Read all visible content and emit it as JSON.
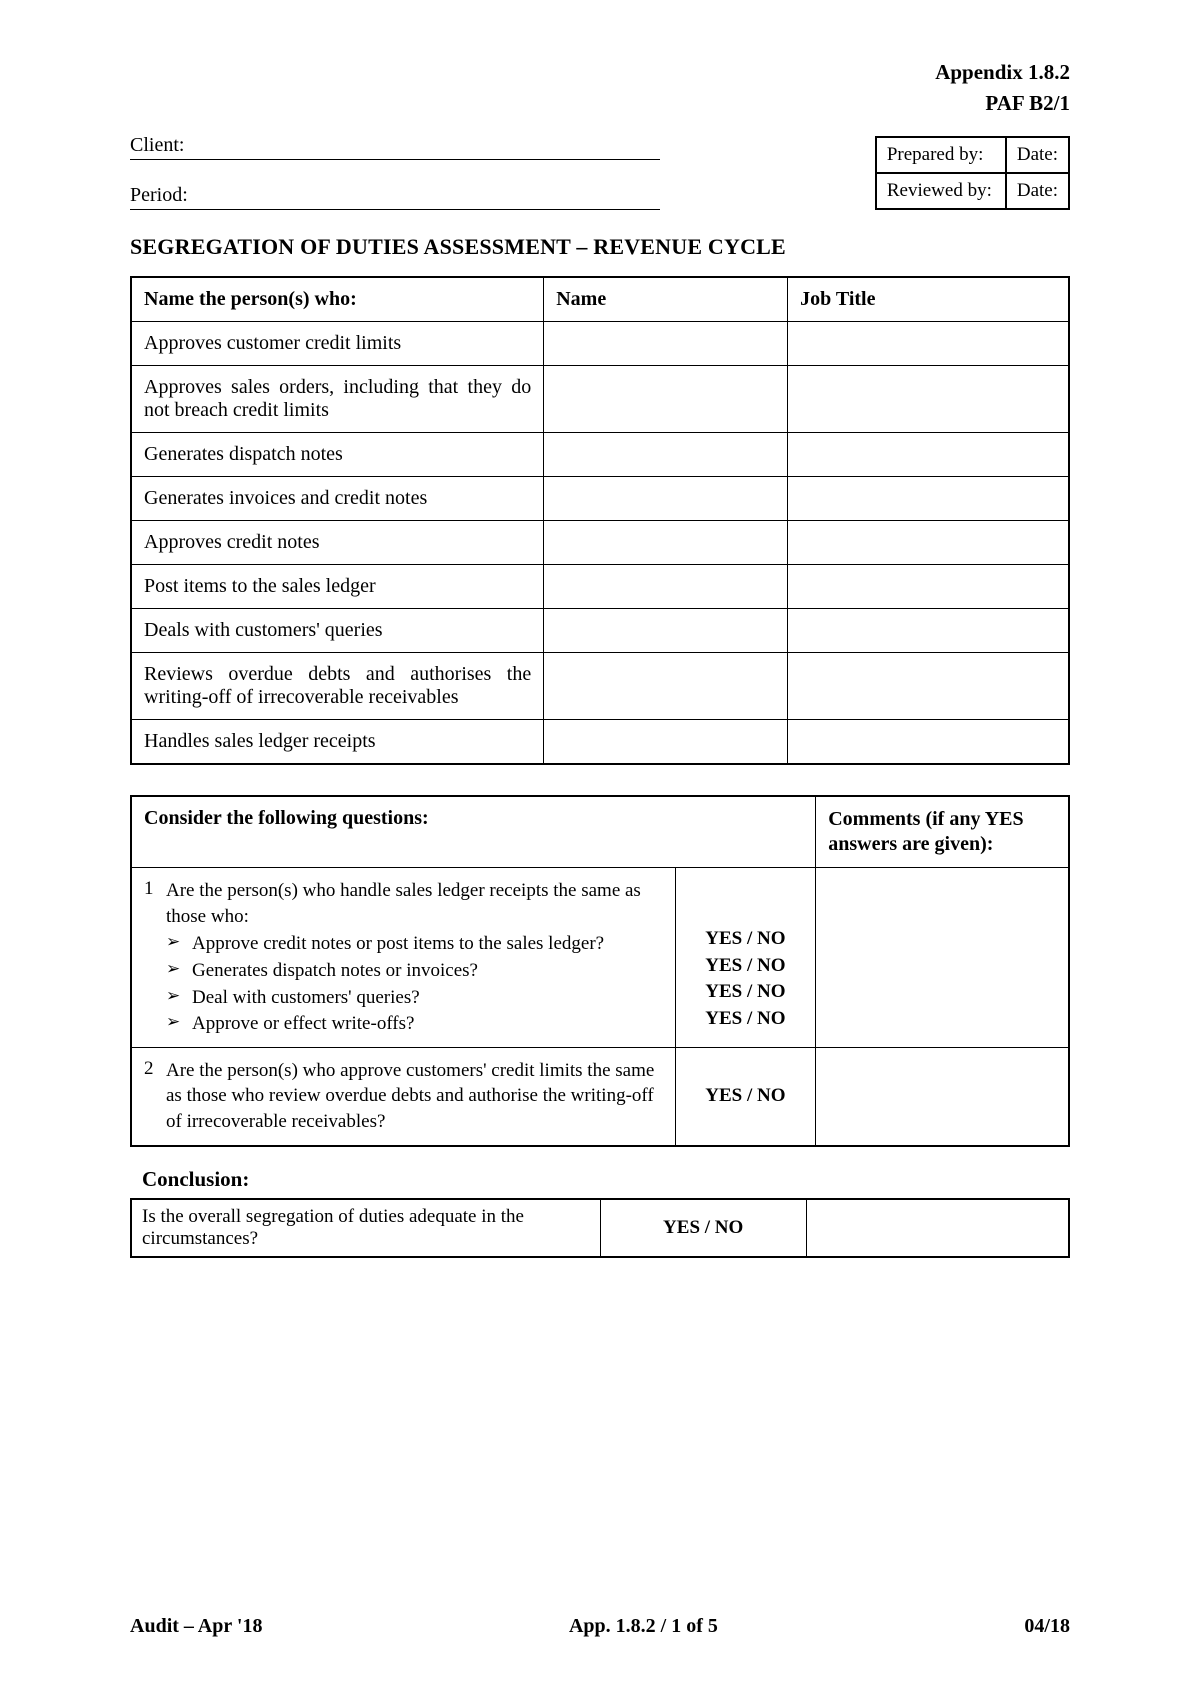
{
  "header": {
    "appendix": "Appendix 1.8.2",
    "paf": "PAF B2/1"
  },
  "fields": {
    "client_label": "Client:",
    "period_label": "Period:"
  },
  "sig_box": {
    "prepared_label": "Prepared by:",
    "reviewed_label": "Reviewed by:",
    "date_label": "Date:"
  },
  "title": "SEGREGATION OF DUTIES ASSESSMENT – REVENUE CYCLE",
  "duties_table": {
    "headers": [
      "Name the person(s) who:",
      "Name",
      "Job Title"
    ],
    "rows": [
      "Approves customer credit limits",
      "Approves sales orders, including that they do not breach credit limits",
      "Generates dispatch notes",
      "Generates invoices and credit notes",
      "Approves credit notes",
      "Post items to the sales ledger",
      "Deals with customers' queries",
      "Reviews overdue debts and authorises the writing-off of irrecoverable receivables",
      "Handles sales ledger receipts"
    ]
  },
  "questions_table": {
    "header_q": "Consider the following questions:",
    "header_c": "Comments (if any YES answers are given):",
    "yesno": "YES / NO",
    "q1": {
      "num": "1",
      "intro": "Are the person(s) who handle sales ledger receipts the same as those who:",
      "bullets": [
        "Approve credit notes or post items to the sales ledger?",
        "Generates dispatch notes or invoices?",
        "Deal with customers' queries?",
        "Approve or effect write-offs?"
      ]
    },
    "q2": {
      "num": "2",
      "text": "Are the person(s) who approve customers' credit limits the same as those who review overdue debts and authorise the writing-off of irrecoverable receivables?"
    }
  },
  "conclusion": {
    "label": "Conclusion:",
    "question": "Is the overall segregation of duties adequate in the circumstances?",
    "yesno": "YES / NO"
  },
  "footer": {
    "left": "Audit – Apr '18",
    "center": "App. 1.8.2 / 1 of 5",
    "right": "04/18"
  }
}
